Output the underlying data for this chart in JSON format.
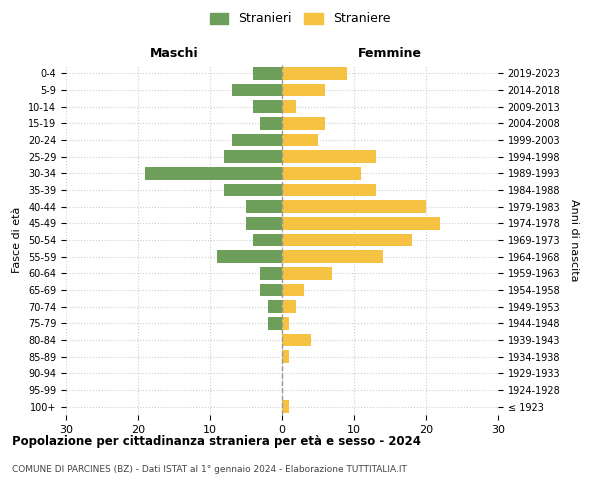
{
  "age_groups": [
    "100+",
    "95-99",
    "90-94",
    "85-89",
    "80-84",
    "75-79",
    "70-74",
    "65-69",
    "60-64",
    "55-59",
    "50-54",
    "45-49",
    "40-44",
    "35-39",
    "30-34",
    "25-29",
    "20-24",
    "15-19",
    "10-14",
    "5-9",
    "0-4"
  ],
  "birth_years": [
    "≤ 1923",
    "1924-1928",
    "1929-1933",
    "1934-1938",
    "1939-1943",
    "1944-1948",
    "1949-1953",
    "1954-1958",
    "1959-1963",
    "1964-1968",
    "1969-1973",
    "1974-1978",
    "1979-1983",
    "1984-1988",
    "1989-1993",
    "1994-1998",
    "1999-2003",
    "2004-2008",
    "2009-2013",
    "2014-2018",
    "2019-2023"
  ],
  "maschi": [
    0,
    0,
    0,
    0,
    0,
    2,
    2,
    3,
    3,
    9,
    4,
    5,
    5,
    8,
    19,
    8,
    7,
    3,
    4,
    7,
    4
  ],
  "femmine": [
    1,
    0,
    0,
    1,
    4,
    1,
    2,
    3,
    7,
    14,
    18,
    22,
    20,
    13,
    11,
    13,
    5,
    6,
    2,
    6,
    9
  ],
  "maschi_color": "#6d9e5a",
  "femmine_color": "#f5c242",
  "title": "Popolazione per cittadinanza straniera per età e sesso - 2024",
  "subtitle": "COMUNE DI PARCINES (BZ) - Dati ISTAT al 1° gennaio 2024 - Elaborazione TUTTITALIA.IT",
  "xlabel_left": "Maschi",
  "xlabel_right": "Femmine",
  "ylabel_left": "Fasce di età",
  "ylabel_right": "Anni di nascita",
  "legend_male": "Stranieri",
  "legend_female": "Straniere",
  "xlim": 30,
  "bg_color": "#ffffff",
  "grid_color": "#cccccc",
  "dashed_line_color": "#999999"
}
